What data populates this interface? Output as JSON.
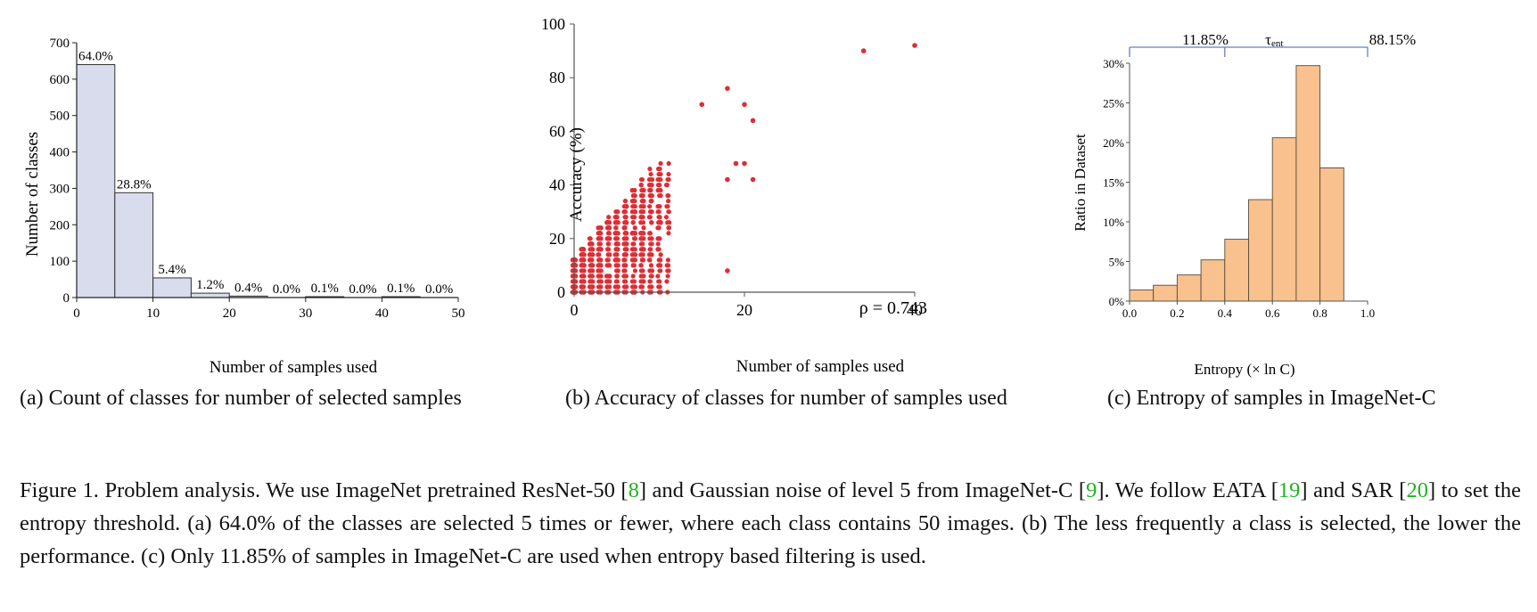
{
  "colors": {
    "bar_a": "#d9dcec",
    "bar_c": "#f8c18e",
    "scatter": "#dd2e35",
    "bracket": "#6a7fc2",
    "ref": "#1fb31f"
  },
  "chart_data": [
    {
      "id": "a",
      "type": "bar",
      "xlabel": "Number of samples used",
      "ylabel": "Number of classes",
      "xlim": [
        0,
        50
      ],
      "ylim": [
        0,
        700
      ],
      "xticks": [
        "0",
        "10",
        "20",
        "30",
        "40",
        "50"
      ],
      "yticks": [
        "0",
        "100",
        "200",
        "300",
        "400",
        "500",
        "600",
        "700"
      ],
      "bins": [
        [
          0,
          5
        ],
        [
          5,
          10
        ],
        [
          10,
          15
        ],
        [
          15,
          20
        ],
        [
          20,
          25
        ],
        [
          25,
          30
        ],
        [
          30,
          35
        ],
        [
          35,
          40
        ],
        [
          40,
          45
        ],
        [
          45,
          50
        ]
      ],
      "values": [
        640,
        288,
        54,
        12,
        4,
        0,
        1,
        0,
        1,
        0
      ],
      "labels": [
        "64.0%",
        "28.8%",
        "5.4%",
        "1.2%",
        "0.4%",
        "0.0%",
        "0.1%",
        "0.0%",
        "0.1%",
        "0.0%"
      ]
    },
    {
      "id": "b",
      "type": "scatter",
      "xlabel": "Number of samples used",
      "ylabel": "Accuracy (%)",
      "xlim": [
        0,
        40
      ],
      "ylim": [
        0,
        100
      ],
      "xticks": [
        "0",
        "20",
        "40"
      ],
      "yticks": [
        "0",
        "20",
        "40",
        "60",
        "80",
        "100"
      ],
      "annotation": "ρ = 0.743",
      "points_note": "dense cloud of ~1000 class points between x=0-12, y=0-55",
      "outliers": [
        [
          34,
          90
        ],
        [
          40,
          92
        ],
        [
          18,
          76
        ],
        [
          20,
          70
        ],
        [
          21,
          64
        ],
        [
          15,
          70
        ],
        [
          18,
          8
        ],
        [
          19,
          48
        ],
        [
          20,
          48
        ],
        [
          21,
          42
        ],
        [
          18,
          42
        ]
      ]
    },
    {
      "id": "c",
      "type": "bar",
      "xlabel": "Entropy (× ln C)",
      "ylabel": "Ratio in Dataset",
      "xlim": [
        0,
        1
      ],
      "ylim": [
        0,
        30
      ],
      "xticks": [
        "0.0",
        "0.2",
        "0.4",
        "0.6",
        "0.8",
        "1.0"
      ],
      "yticks": [
        "0%",
        "5%",
        "10%",
        "15%",
        "20%",
        "25%",
        "30%"
      ],
      "bins": [
        [
          0,
          0.1
        ],
        [
          0.1,
          0.2
        ],
        [
          0.2,
          0.3
        ],
        [
          0.3,
          0.4
        ],
        [
          0.4,
          0.5
        ],
        [
          0.5,
          0.6
        ],
        [
          0.6,
          0.7
        ],
        [
          0.7,
          0.8
        ],
        [
          0.8,
          0.9
        ]
      ],
      "values": [
        1.4,
        2.0,
        3.3,
        5.2,
        7.8,
        12.8,
        20.6,
        29.7,
        16.8
      ],
      "threshold": 0.4,
      "threshold_label": "τ",
      "threshold_sub": "ent",
      "left_label": "11.85%",
      "right_label": "88.15%"
    }
  ],
  "subcaptions": {
    "a": "(a) Count of classes for number of selected samples",
    "b": "(b) Accuracy of classes for number of samples used",
    "c": "(c) Entropy of samples in ImageNet-C"
  },
  "caption": {
    "p1": "Figure 1. Problem analysis. We use ImageNet pretrained ResNet-50 [",
    "r1": "8",
    "p2": "] and Gaussian noise of level 5 from ImageNet-C [",
    "r2": "9",
    "p3": "]. We follow EATA [",
    "r3": "19",
    "p4": "] and SAR [",
    "r4": "20",
    "p5": "] to set the entropy threshold. (a) 64.0% of the classes are selected 5 times or fewer, where each class contains 50 images. (b) The less frequently a class is selected, the lower the performance. (c) Only 11.85% of samples in ImageNet-C are used when entropy based filtering is used."
  }
}
